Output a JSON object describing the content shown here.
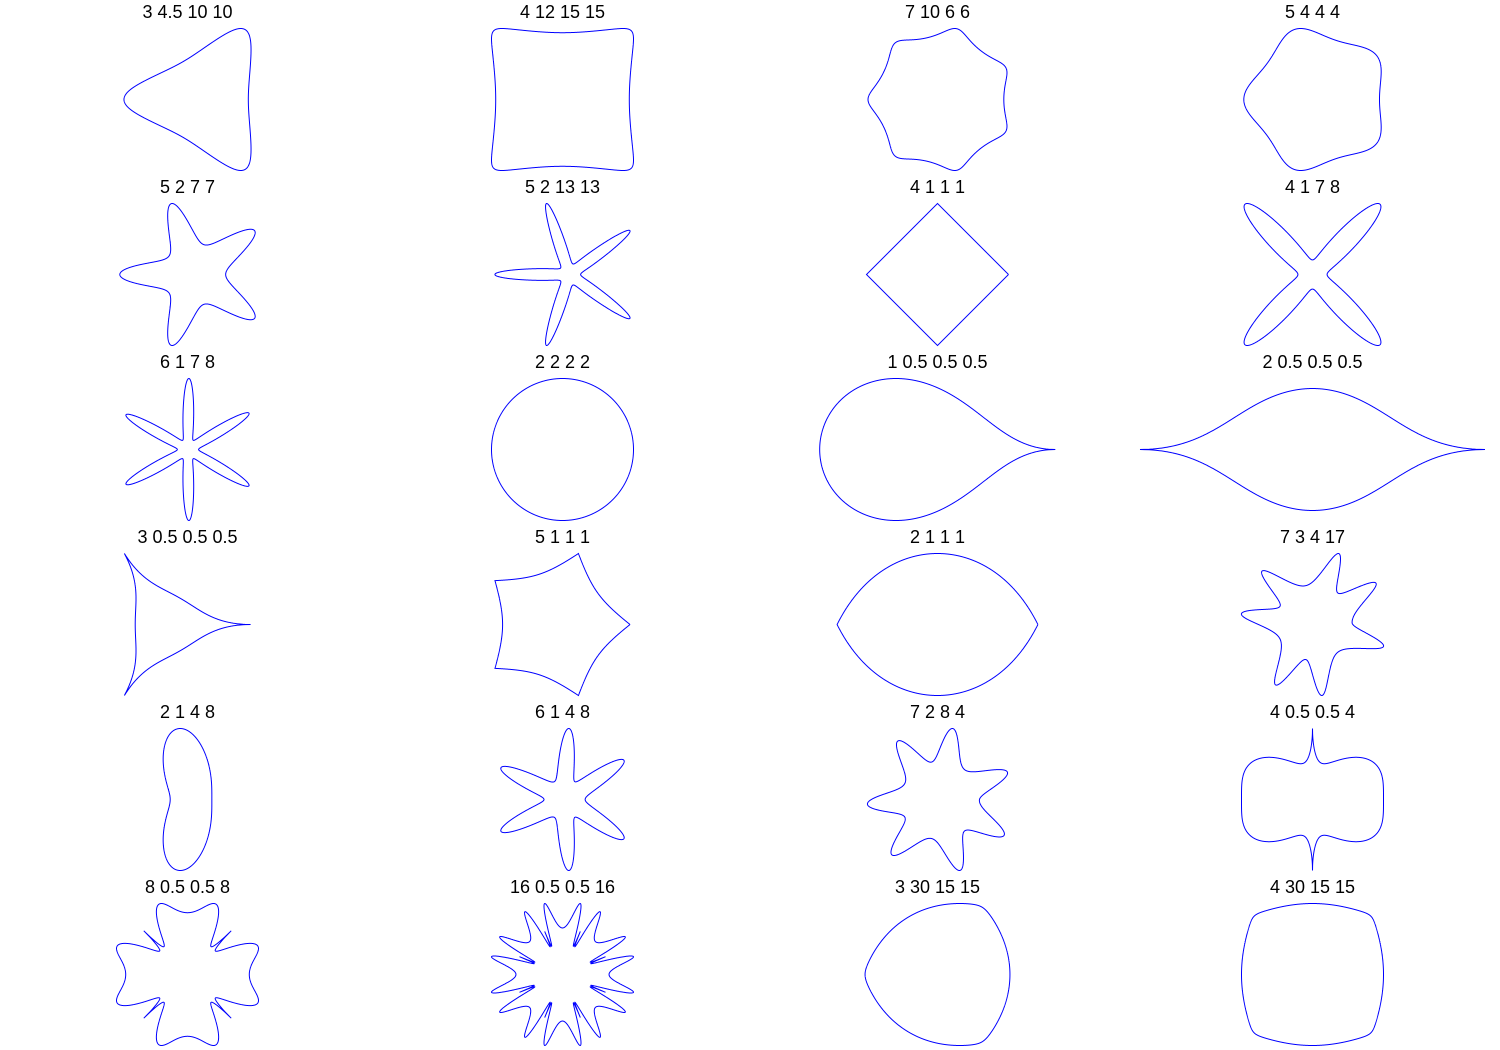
{
  "figure": {
    "columns": 4,
    "rows": 6,
    "curve_color": "#0000ff",
    "panels": [
      {
        "title": "3 4.5 10 10",
        "params": [
          3,
          4.5,
          10,
          10
        ]
      },
      {
        "title": "4 12 15 15",
        "params": [
          4,
          12,
          15,
          15
        ]
      },
      {
        "title": "7 10 6 6",
        "params": [
          7,
          10,
          6,
          6
        ]
      },
      {
        "title": "5 4 4 4",
        "params": [
          5,
          4,
          4,
          4
        ]
      },
      {
        "title": "5 2 7 7",
        "params": [
          5,
          2,
          7,
          7
        ]
      },
      {
        "title": "5 2 13 13",
        "params": [
          5,
          2,
          13,
          13
        ]
      },
      {
        "title": "4 1 1 1",
        "params": [
          4,
          1,
          1,
          1
        ]
      },
      {
        "title": "4 1 7 8",
        "params": [
          4,
          1,
          7,
          8
        ]
      },
      {
        "title": "6 1 7 8",
        "params": [
          6,
          1,
          7,
          8
        ]
      },
      {
        "title": "2 2 2 2",
        "params": [
          2,
          2,
          2,
          2
        ]
      },
      {
        "title": "1 0.5 0.5 0.5",
        "params": [
          1,
          0.5,
          0.5,
          0.5
        ]
      },
      {
        "title": "2 0.5 0.5 0.5",
        "params": [
          2,
          0.5,
          0.5,
          0.5
        ]
      },
      {
        "title": "3 0.5 0.5 0.5",
        "params": [
          3,
          0.5,
          0.5,
          0.5
        ]
      },
      {
        "title": "5 1 1 1",
        "params": [
          5,
          1,
          1,
          1
        ]
      },
      {
        "title": "2 1 1 1",
        "params": [
          2,
          1,
          1,
          1
        ]
      },
      {
        "title": "7 3 4 17",
        "params": [
          7,
          3,
          4,
          17
        ]
      },
      {
        "title": "2 1 4 8",
        "params": [
          2,
          1,
          4,
          8
        ]
      },
      {
        "title": "6 1 4 8",
        "params": [
          6,
          1,
          4,
          8
        ]
      },
      {
        "title": "7 2 8 4",
        "params": [
          7,
          2,
          8,
          4
        ]
      },
      {
        "title": "4 0.5 0.5 4",
        "params": [
          4,
          0.5,
          0.5,
          4
        ]
      },
      {
        "title": "8 0.5 0.5 8",
        "params": [
          8,
          0.5,
          0.5,
          8
        ]
      },
      {
        "title": "16 0.5 0.5 16",
        "params": [
          16,
          0.5,
          0.5,
          16
        ]
      },
      {
        "title": "3 30 15 15",
        "params": [
          3,
          30,
          15,
          15
        ]
      },
      {
        "title": "4 30 15 15",
        "params": [
          4,
          30,
          15,
          15
        ]
      }
    ]
  }
}
